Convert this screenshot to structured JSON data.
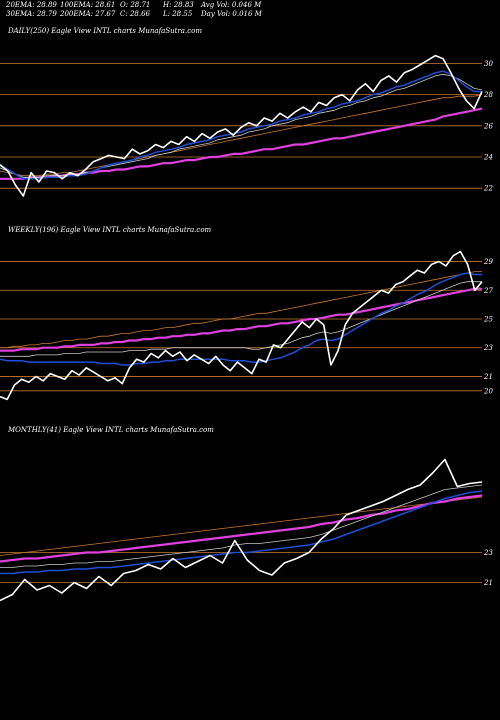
{
  "header": {
    "row1": [
      "20EMA: 28.89",
      "100EMA: 28.61",
      "O: 28.71",
      "H: 28.83",
      "Avg Vol: 0.046  M"
    ],
    "row2": [
      "30EMA: 28.79",
      "200EMA: 27.67",
      "C: 28.66",
      "L: 28.55",
      "Day Vol: 0.016  M"
    ]
  },
  "colors": {
    "background": "#000000",
    "price": "#ffffff",
    "ema_fast": "#1f4fd8",
    "ema_long": "#e040e0",
    "ema_mid": "#c8c8c8",
    "ema_slow": "#c87830",
    "level": "#c87830"
  },
  "chart_data": [
    {
      "type": "line",
      "title": "DAILY(250) Eagle  View  INTL  charts MunafaSutra.com",
      "yticks": [
        "30",
        "28",
        "26",
        "24",
        "22"
      ],
      "levels": [
        30,
        28,
        26,
        24,
        22
      ],
      "ylim": [
        21.5,
        31.5
      ],
      "series": [
        {
          "role": "price",
          "values": [
            23.5,
            23.1,
            22.2,
            21.5,
            23.0,
            22.4,
            23.1,
            23.0,
            22.6,
            23.0,
            22.8,
            23.2,
            23.7,
            23.9,
            24.1,
            24.0,
            23.9,
            24.5,
            24.2,
            24.4,
            24.8,
            24.6,
            25.0,
            24.8,
            25.3,
            25.0,
            25.5,
            25.2,
            25.6,
            25.8,
            25.4,
            25.9,
            26.2,
            26.0,
            26.5,
            26.3,
            26.8,
            26.5,
            26.9,
            27.2,
            26.9,
            27.5,
            27.3,
            27.8,
            28.0,
            27.6,
            28.3,
            28.7,
            28.2,
            28.9,
            29.2,
            28.8,
            29.4,
            29.6,
            29.9,
            30.2,
            30.5,
            30.3,
            29.4,
            28.4,
            27.6,
            27.1,
            28.2
          ]
        },
        {
          "role": "ema_slow",
          "values": [
            23.1,
            23.0,
            22.9,
            22.8,
            22.8,
            22.8,
            22.9,
            22.9,
            23.0,
            23.0,
            23.1,
            23.2,
            23.3,
            23.4,
            23.5,
            23.6,
            23.7,
            23.8,
            23.9,
            24.0,
            24.1,
            24.2,
            24.3,
            24.4,
            24.5,
            24.6,
            24.7,
            24.8,
            24.9,
            25.0,
            25.1,
            25.2,
            25.3,
            25.4,
            25.5,
            25.6,
            25.7,
            25.8,
            25.9,
            26.0,
            26.1,
            26.2,
            26.3,
            26.4,
            26.5,
            26.6,
            26.7,
            26.8,
            26.9,
            27.0,
            27.1,
            27.2,
            27.3,
            27.4,
            27.5,
            27.6,
            27.7,
            27.8,
            27.8,
            27.9,
            27.9,
            27.9,
            28.0
          ]
        },
        {
          "role": "ema_long",
          "values": [
            22.6,
            22.6,
            22.6,
            22.6,
            22.7,
            22.7,
            22.7,
            22.8,
            22.8,
            22.9,
            22.9,
            23.0,
            23.0,
            23.1,
            23.1,
            23.2,
            23.2,
            23.3,
            23.4,
            23.4,
            23.5,
            23.6,
            23.6,
            23.7,
            23.8,
            23.8,
            23.9,
            24.0,
            24.0,
            24.1,
            24.2,
            24.2,
            24.3,
            24.4,
            24.5,
            24.5,
            24.6,
            24.7,
            24.8,
            24.8,
            24.9,
            25.0,
            25.1,
            25.2,
            25.2,
            25.3,
            25.4,
            25.5,
            25.6,
            25.7,
            25.8,
            25.9,
            26.0,
            26.1,
            26.2,
            26.3,
            26.4,
            26.6,
            26.7,
            26.8,
            26.9,
            27.0,
            27.1
          ]
        },
        {
          "role": "ema_mid",
          "values": [
            23.3,
            23.1,
            22.9,
            22.7,
            22.7,
            22.7,
            22.8,
            22.8,
            22.8,
            22.9,
            22.9,
            23.0,
            23.1,
            23.3,
            23.4,
            23.5,
            23.6,
            23.7,
            23.8,
            23.9,
            24.1,
            24.2,
            24.3,
            24.5,
            24.6,
            24.7,
            24.8,
            24.9,
            25.1,
            25.2,
            25.3,
            25.4,
            25.6,
            25.7,
            25.8,
            26.0,
            26.1,
            26.2,
            26.4,
            26.5,
            26.6,
            26.8,
            26.9,
            27.0,
            27.2,
            27.3,
            27.5,
            27.6,
            27.8,
            27.9,
            28.1,
            28.3,
            28.4,
            28.6,
            28.8,
            29.0,
            29.2,
            29.3,
            29.2,
            29.0,
            28.7,
            28.4,
            28.3
          ]
        },
        {
          "role": "ema_fast",
          "values": [
            23.5,
            23.2,
            22.9,
            22.6,
            22.6,
            22.6,
            22.7,
            22.7,
            22.7,
            22.8,
            22.8,
            22.9,
            23.1,
            23.3,
            23.5,
            23.6,
            23.7,
            23.8,
            24.0,
            24.1,
            24.3,
            24.4,
            24.5,
            24.6,
            24.8,
            24.9,
            25.0,
            25.1,
            25.3,
            25.4,
            25.5,
            25.6,
            25.8,
            25.9,
            26.0,
            26.1,
            26.3,
            26.4,
            26.5,
            26.7,
            26.8,
            26.9,
            27.1,
            27.2,
            27.4,
            27.5,
            27.6,
            27.8,
            28.0,
            28.1,
            28.3,
            28.5,
            28.6,
            28.8,
            29.0,
            29.2,
            29.4,
            29.5,
            29.3,
            28.9,
            28.5,
            28.2,
            28.2
          ]
        }
      ]
    },
    {
      "type": "line",
      "title": "WEEKLY(196) Eagle  View  INTL  charts MunafaSutra.com",
      "yticks": [
        "29",
        "27",
        "25",
        "23",
        "21",
        "20"
      ],
      "levels": [
        29,
        27,
        25,
        23,
        21,
        20
      ],
      "ylim": [
        19.5,
        30.5
      ],
      "series": [
        {
          "role": "price",
          "values": [
            19.6,
            19.4,
            20.4,
            20.8,
            20.6,
            21.0,
            20.7,
            21.2,
            21.0,
            20.8,
            21.4,
            21.1,
            21.6,
            21.3,
            21.0,
            20.7,
            20.9,
            20.5,
            21.6,
            22.2,
            22.0,
            22.6,
            22.3,
            22.8,
            22.4,
            22.7,
            22.1,
            22.5,
            22.2,
            21.9,
            22.4,
            21.8,
            21.4,
            22.0,
            21.6,
            21.2,
            22.2,
            22.0,
            23.2,
            23.0,
            23.6,
            24.2,
            24.8,
            24.4,
            25.0,
            24.6,
            21.8,
            22.8,
            24.6,
            25.4,
            25.8,
            26.2,
            26.6,
            27.0,
            26.8,
            27.4,
            27.6,
            28.0,
            28.4,
            28.2,
            28.8,
            29.0,
            28.7,
            29.4,
            29.7,
            28.8,
            27.0,
            27.6
          ]
        },
        {
          "role": "ema_slow",
          "values": [
            23.0,
            23.0,
            23.1,
            23.1,
            23.2,
            23.2,
            23.3,
            23.3,
            23.4,
            23.5,
            23.5,
            23.6,
            23.6,
            23.7,
            23.8,
            23.8,
            23.9,
            24.0,
            24.0,
            24.1,
            24.2,
            24.2,
            24.3,
            24.4,
            24.4,
            24.5,
            24.6,
            24.7,
            24.7,
            24.8,
            24.9,
            25.0,
            25.0,
            25.1,
            25.2,
            25.3,
            25.4,
            25.4,
            25.5,
            25.6,
            25.7,
            25.8,
            25.9,
            26.0,
            26.1,
            26.2,
            26.3,
            26.4,
            26.5,
            26.6,
            26.7,
            26.8,
            26.9,
            27.0,
            27.1,
            27.2,
            27.3,
            27.4,
            27.5,
            27.6,
            27.7,
            27.8,
            27.9,
            28.0,
            28.1,
            28.2,
            28.3,
            28.3
          ]
        },
        {
          "role": "ema_long",
          "values": [
            22.8,
            22.8,
            22.8,
            22.9,
            22.9,
            22.9,
            23.0,
            23.0,
            23.0,
            23.1,
            23.1,
            23.2,
            23.2,
            23.2,
            23.3,
            23.3,
            23.4,
            23.4,
            23.5,
            23.5,
            23.6,
            23.6,
            23.7,
            23.7,
            23.8,
            23.8,
            23.9,
            23.9,
            24.0,
            24.0,
            24.1,
            24.2,
            24.2,
            24.3,
            24.3,
            24.4,
            24.5,
            24.5,
            24.6,
            24.7,
            24.7,
            24.8,
            24.9,
            25.0,
            25.0,
            25.1,
            25.2,
            25.3,
            25.3,
            25.4,
            25.5,
            25.6,
            25.7,
            25.8,
            25.9,
            26.0,
            26.1,
            26.2,
            26.3,
            26.4,
            26.5,
            26.6,
            26.7,
            26.8,
            26.9,
            27.0,
            27.1,
            27.1
          ]
        },
        {
          "role": "ema_mid",
          "values": [
            22.4,
            22.4,
            22.4,
            22.4,
            22.4,
            22.5,
            22.5,
            22.5,
            22.5,
            22.6,
            22.6,
            22.6,
            22.7,
            22.7,
            22.7,
            22.7,
            22.7,
            22.7,
            22.8,
            22.8,
            22.8,
            22.9,
            22.9,
            22.9,
            23.0,
            23.0,
            23.0,
            23.0,
            23.0,
            23.0,
            23.0,
            23.0,
            23.0,
            23.0,
            23.0,
            22.9,
            22.9,
            23.0,
            23.1,
            23.2,
            23.3,
            23.5,
            23.7,
            23.8,
            24.0,
            24.1,
            24.0,
            24.1,
            24.3,
            24.5,
            24.7,
            24.9,
            25.1,
            25.3,
            25.5,
            25.7,
            25.9,
            26.1,
            26.3,
            26.5,
            26.7,
            26.9,
            27.1,
            27.3,
            27.5,
            27.6,
            27.6,
            27.6
          ]
        },
        {
          "role": "ema_fast",
          "values": [
            22.2,
            22.1,
            22.1,
            22.1,
            22.0,
            22.0,
            22.0,
            22.0,
            22.0,
            22.0,
            22.0,
            22.0,
            22.0,
            22.0,
            21.9,
            21.9,
            21.9,
            21.8,
            21.8,
            21.9,
            21.9,
            22.0,
            22.0,
            22.1,
            22.1,
            22.2,
            22.2,
            22.2,
            22.2,
            22.2,
            22.2,
            22.2,
            22.1,
            22.1,
            22.1,
            22.0,
            22.0,
            22.1,
            22.2,
            22.3,
            22.5,
            22.7,
            23.0,
            23.2,
            23.5,
            23.6,
            23.5,
            23.6,
            23.9,
            24.2,
            24.5,
            24.8,
            25.1,
            25.4,
            25.6,
            25.9,
            26.1,
            26.4,
            26.7,
            26.9,
            27.2,
            27.5,
            27.7,
            27.9,
            28.1,
            28.2,
            28.1,
            28.1
          ]
        }
      ]
    },
    {
      "type": "line",
      "title": "MONTHLY(41) Eagle  View  INTL  charts MunafaSutra.com",
      "yticks": [
        "23",
        "21"
      ],
      "levels": [
        23,
        21
      ],
      "ylim": [
        18.5,
        30.5
      ],
      "series": [
        {
          "role": "price",
          "values": [
            19.8,
            20.2,
            21.2,
            20.5,
            20.8,
            20.3,
            21.0,
            20.6,
            21.4,
            20.8,
            21.6,
            21.8,
            22.2,
            21.9,
            22.6,
            22.0,
            22.4,
            22.8,
            22.3,
            23.8,
            22.5,
            21.8,
            21.5,
            22.3,
            22.6,
            23.0,
            23.9,
            24.6,
            25.5,
            25.8,
            26.1,
            26.4,
            26.8,
            27.2,
            27.5,
            28.3,
            29.2,
            27.4,
            27.6,
            27.7
          ]
        },
        {
          "role": "ema_slow",
          "values": [
            22.8,
            22.9,
            23.0,
            23.1,
            23.2,
            23.3,
            23.4,
            23.5,
            23.6,
            23.7,
            23.8,
            23.9,
            24.0,
            24.1,
            24.2,
            24.3,
            24.4,
            24.5,
            24.6,
            24.7,
            24.8,
            24.9,
            25.0,
            25.1,
            25.2,
            25.3,
            25.4,
            25.5,
            25.6,
            25.7,
            25.8,
            25.9,
            26.0,
            26.1,
            26.2,
            26.3,
            26.4,
            26.5,
            26.6,
            26.7
          ]
        },
        {
          "role": "ema_long",
          "values": [
            22.4,
            22.5,
            22.6,
            22.6,
            22.7,
            22.8,
            22.9,
            23.0,
            23.0,
            23.1,
            23.2,
            23.3,
            23.4,
            23.5,
            23.6,
            23.7,
            23.8,
            23.9,
            24.0,
            24.1,
            24.2,
            24.3,
            24.4,
            24.5,
            24.6,
            24.7,
            24.9,
            25.0,
            25.2,
            25.3,
            25.5,
            25.6,
            25.8,
            25.9,
            26.1,
            26.3,
            26.4,
            26.6,
            26.7,
            26.8
          ]
        },
        {
          "role": "ema_mid",
          "values": [
            22.0,
            22.0,
            22.1,
            22.1,
            22.2,
            22.2,
            22.3,
            22.3,
            22.4,
            22.4,
            22.5,
            22.6,
            22.7,
            22.8,
            22.9,
            23.0,
            23.1,
            23.2,
            23.3,
            23.5,
            23.6,
            23.6,
            23.7,
            23.8,
            23.9,
            24.0,
            24.2,
            24.5,
            24.8,
            25.1,
            25.4,
            25.7,
            26.0,
            26.3,
            26.6,
            26.9,
            27.2,
            27.3,
            27.4,
            27.5
          ]
        },
        {
          "role": "ema_fast",
          "values": [
            21.6,
            21.6,
            21.7,
            21.7,
            21.8,
            21.8,
            21.9,
            21.9,
            22.0,
            22.0,
            22.1,
            22.2,
            22.3,
            22.4,
            22.5,
            22.6,
            22.7,
            22.8,
            22.9,
            23.0,
            23.0,
            23.1,
            23.2,
            23.3,
            23.4,
            23.5,
            23.7,
            23.9,
            24.2,
            24.5,
            24.8,
            25.1,
            25.4,
            25.7,
            26.0,
            26.3,
            26.6,
            26.8,
            27.0,
            27.1
          ]
        }
      ]
    }
  ]
}
